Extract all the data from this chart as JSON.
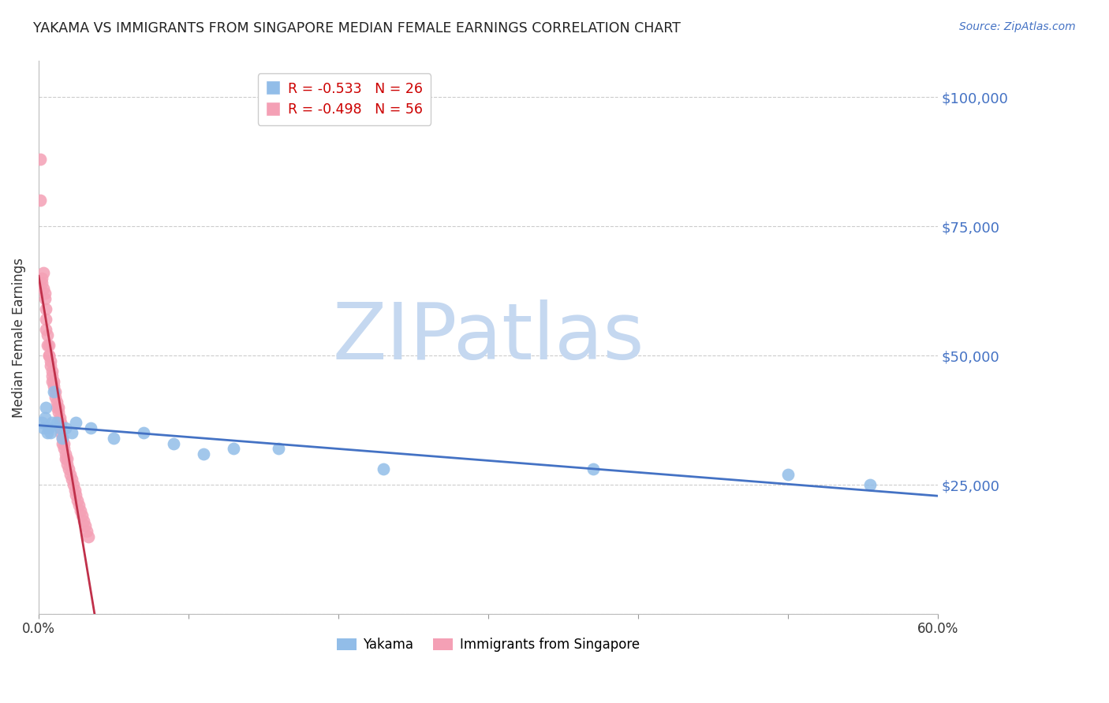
{
  "title": "YAKAMA VS IMMIGRANTS FROM SINGAPORE MEDIAN FEMALE EARNINGS CORRELATION CHART",
  "source": "Source: ZipAtlas.com",
  "ylabel": "Median Female Earnings",
  "yticks": [
    0,
    25000,
    50000,
    75000,
    100000
  ],
  "ytick_labels": [
    "",
    "$25,000",
    "$50,000",
    "$75,000",
    "$100,000"
  ],
  "xlim": [
    0.0,
    0.6
  ],
  "ylim": [
    0,
    107000
  ],
  "yakama_R": -0.533,
  "yakama_N": 26,
  "singapore_R": -0.498,
  "singapore_N": 56,
  "yakama_color": "#92bde8",
  "singapore_color": "#f4a0b5",
  "trendline_yakama_color": "#4472c4",
  "trendline_singapore_color": "#c0304a",
  "watermark_zip_color": "#c5d8f0",
  "watermark_atlas_color": "#c5d8f0",
  "background_color": "#ffffff",
  "yakama_x": [
    0.002,
    0.003,
    0.004,
    0.005,
    0.006,
    0.007,
    0.008,
    0.009,
    0.01,
    0.012,
    0.014,
    0.016,
    0.018,
    0.022,
    0.025,
    0.035,
    0.05,
    0.07,
    0.09,
    0.11,
    0.13,
    0.16,
    0.23,
    0.37,
    0.5,
    0.555
  ],
  "yakama_y": [
    37000,
    36000,
    38000,
    40000,
    35000,
    36000,
    35000,
    37000,
    43000,
    37000,
    36000,
    34000,
    36000,
    35000,
    37000,
    36000,
    34000,
    35000,
    33000,
    31000,
    32000,
    32000,
    28000,
    28000,
    27000,
    25000
  ],
  "singapore_x": [
    0.001,
    0.001,
    0.002,
    0.002,
    0.003,
    0.003,
    0.004,
    0.004,
    0.005,
    0.005,
    0.005,
    0.006,
    0.006,
    0.007,
    0.007,
    0.007,
    0.008,
    0.008,
    0.009,
    0.009,
    0.009,
    0.01,
    0.01,
    0.011,
    0.011,
    0.012,
    0.012,
    0.013,
    0.013,
    0.014,
    0.014,
    0.015,
    0.015,
    0.015,
    0.016,
    0.016,
    0.017,
    0.017,
    0.018,
    0.018,
    0.019,
    0.019,
    0.02,
    0.021,
    0.022,
    0.023,
    0.024,
    0.025,
    0.026,
    0.027,
    0.028,
    0.029,
    0.03,
    0.031,
    0.032,
    0.033
  ],
  "singapore_y": [
    88000,
    80000,
    65000,
    64000,
    66000,
    63000,
    62000,
    61000,
    59000,
    57000,
    55000,
    54000,
    52000,
    52000,
    50000,
    50000,
    49000,
    48000,
    47000,
    46000,
    45000,
    45000,
    44000,
    43000,
    42000,
    41000,
    40000,
    40000,
    39000,
    38000,
    37000,
    37000,
    36000,
    35000,
    34000,
    33000,
    33000,
    32000,
    31000,
    30000,
    30000,
    29000,
    28000,
    27000,
    26000,
    25000,
    24000,
    23000,
    22000,
    21000,
    20000,
    19000,
    18000,
    17000,
    16000,
    15000
  ],
  "x_tick_positions": [
    0.0,
    0.1,
    0.2,
    0.3,
    0.4,
    0.5,
    0.6
  ],
  "x_tick_labels": [
    "0.0%",
    "",
    "",
    "",
    "",
    "",
    "60.0%"
  ]
}
